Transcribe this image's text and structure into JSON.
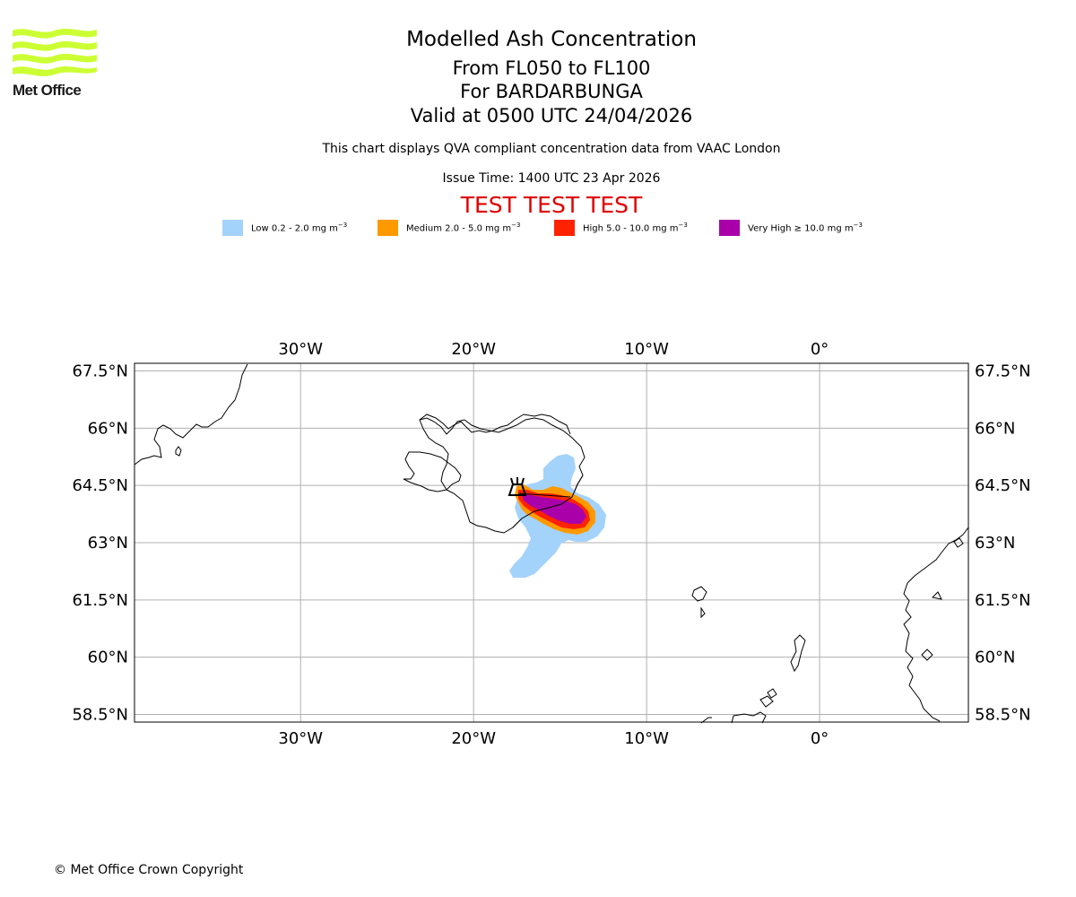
{
  "logo": {
    "text": "Met Office",
    "color": "#ccff33"
  },
  "header": {
    "title": "Modelled Ash Concentration",
    "levels": "From FL050 to FL100",
    "volcano": "For BARDARBUNGA",
    "valid": "Valid at 0500 UTC 24/04/2026",
    "note": "This chart displays QVA compliant concentration data from VAAC London",
    "issue": "Issue Time: 1400 UTC 23 Apr 2026",
    "test_banner": "TEST TEST TEST"
  },
  "legend": [
    {
      "label": "Low 0.2 - 2.0 mg m",
      "unit_exp": "−3",
      "color": "#a3d3fb"
    },
    {
      "label": "Medium 2.0 - 5.0 mg m",
      "unit_exp": "−3",
      "color": "#ff9900"
    },
    {
      "label": "High 5.0 - 10.0 mg m",
      "unit_exp": "−3",
      "color": "#ff2200"
    },
    {
      "label": "Very High ≥ 10.0 mg m",
      "unit_exp": "−3",
      "color": "#aa00aa"
    }
  ],
  "map": {
    "lon_labels": [
      "30°W",
      "20°W",
      "10°W",
      "0°"
    ],
    "lat_labels": [
      "67.5°N",
      "66°N",
      "64.5°N",
      "63°N",
      "61.5°N",
      "60°N",
      "58.5°N"
    ],
    "lon_values": [
      -30,
      -20,
      -10,
      0
    ],
    "lat_values": [
      67.5,
      66,
      64.5,
      63,
      61.5,
      60,
      58.5
    ],
    "extent": {
      "lon_min": -39.6,
      "lon_max": 8.6,
      "lat_min": 58.3,
      "lat_max": 67.7
    }
  },
  "footer": {
    "copyright": "© Met Office Crown Copyright"
  }
}
